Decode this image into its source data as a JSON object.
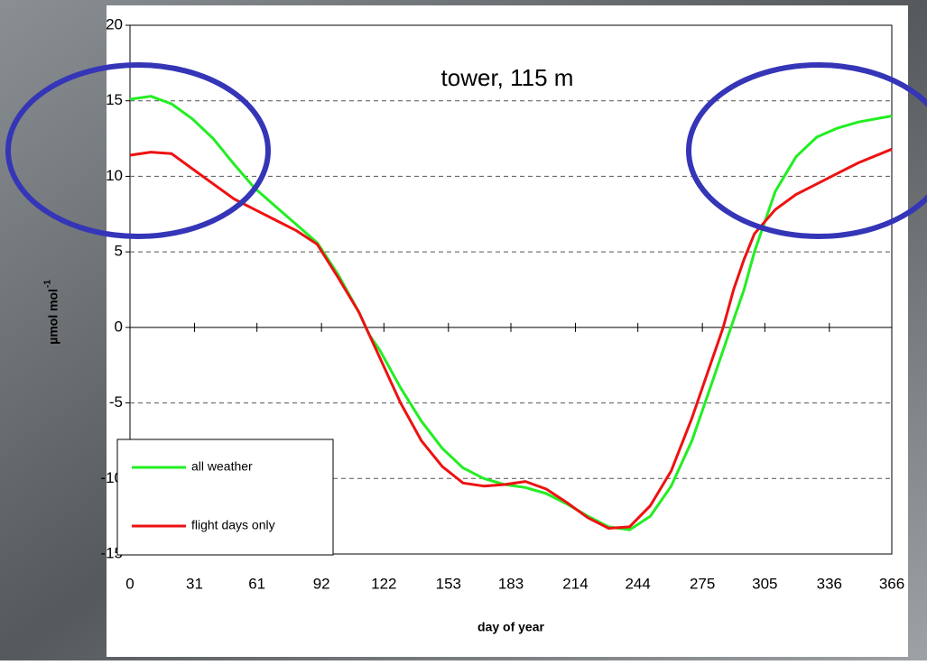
{
  "chart_data": {
    "type": "line",
    "title": "tower, 115 m",
    "xlabel": "day of year",
    "ylabel": "µmol mol",
    "ylabel_superscript": "-1",
    "x": [
      0,
      10,
      20,
      30,
      40,
      50,
      60,
      70,
      80,
      90,
      100,
      110,
      115,
      120,
      130,
      140,
      150,
      160,
      170,
      180,
      190,
      200,
      210,
      220,
      230,
      240,
      250,
      260,
      270,
      280,
      285,
      290,
      295,
      300,
      305,
      310,
      320,
      330,
      340,
      350,
      366
    ],
    "series": [
      {
        "name": "all weather",
        "color": "#22ee22",
        "values": [
          15.1,
          15.3,
          14.8,
          13.8,
          12.5,
          10.8,
          9.2,
          8.0,
          6.8,
          5.6,
          3.5,
          1.0,
          -0.5,
          -1.5,
          -4.0,
          -6.2,
          -8.0,
          -9.3,
          -10.0,
          -10.4,
          -10.6,
          -11.0,
          -11.7,
          -12.5,
          -13.2,
          -13.4,
          -12.5,
          -10.5,
          -7.5,
          -3.5,
          -1.5,
          0.5,
          2.5,
          5.0,
          7.0,
          9.0,
          11.3,
          12.6,
          13.2,
          13.6,
          14.0
        ]
      },
      {
        "name": "flight days only",
        "color": "#ee1111",
        "values": [
          11.4,
          11.6,
          11.5,
          10.5,
          9.5,
          8.5,
          7.8,
          7.1,
          6.4,
          5.5,
          3.3,
          1.0,
          -0.5,
          -2.0,
          -5.0,
          -7.5,
          -9.2,
          -10.3,
          -10.5,
          -10.4,
          -10.2,
          -10.7,
          -11.6,
          -12.6,
          -13.3,
          -13.2,
          -11.8,
          -9.5,
          -6.0,
          -2.0,
          0.0,
          2.5,
          4.5,
          6.2,
          7.0,
          7.8,
          8.8,
          9.5,
          10.2,
          10.9,
          11.8
        ]
      }
    ],
    "xlim": [
      0,
      366
    ],
    "xticks": [
      0,
      31,
      61,
      92,
      122,
      153,
      183,
      214,
      244,
      275,
      305,
      336,
      366
    ],
    "ylim": [
      -15,
      20
    ],
    "yticks": [
      -15,
      -10,
      -5,
      0,
      5,
      10,
      15,
      20
    ],
    "grid": true,
    "legend": "lower left"
  }
}
